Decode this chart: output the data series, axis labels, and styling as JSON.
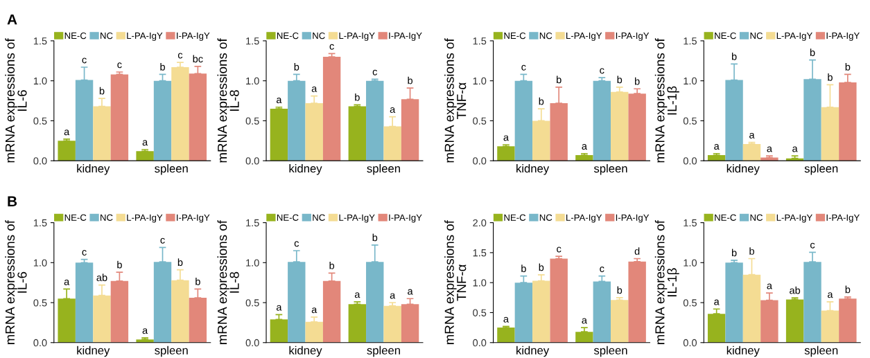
{
  "chart_data": [
    {
      "type": "bar",
      "ylabel": "mRNA expressions of\nIL-6",
      "annotations": [
        "A"
      ],
      "categories": [
        "kidney",
        "spleen"
      ],
      "legend": "top",
      "ylim": [
        0,
        1.5
      ],
      "yticks": [
        {
          "value": 0,
          "label": "0.0"
        },
        {
          "value": 0.5,
          "label": "0.5"
        },
        {
          "value": 1.0,
          "label": "1.0"
        },
        {
          "value": 1.5,
          "label": "1.5"
        }
      ],
      "series": [
        {
          "name": "NE-C",
          "color": "#97b31e",
          "values": [
            0.25,
            0.12
          ],
          "errors": [
            0.02,
            0.02
          ],
          "value_labels": [
            "a",
            "a"
          ]
        },
        {
          "name": "NC",
          "color": "#78b7c9",
          "values": [
            1.01,
            1.0
          ],
          "errors": [
            0.16,
            0.08
          ],
          "value_labels": [
            "c",
            "b"
          ]
        },
        {
          "name": "L-PA-IgY",
          "color": "#f4dc93",
          "values": [
            0.68,
            1.17
          ],
          "errors": [
            0.1,
            0.06
          ],
          "value_labels": [
            "b",
            "c"
          ]
        },
        {
          "name": "I-PA-IgY",
          "color": "#e2877a",
          "values": [
            1.08,
            1.09
          ],
          "errors": [
            0.03,
            0.09
          ],
          "value_labels": [
            "c",
            "bc"
          ]
        }
      ]
    },
    {
      "type": "bar",
      "ylabel": "mRNA expressions of\nIL-8",
      "categories": [
        "kidney",
        "spleen"
      ],
      "legend": "top",
      "ylim": [
        0,
        1.5
      ],
      "yticks": [
        {
          "value": 0,
          "label": "0.0"
        },
        {
          "value": 0.5,
          "label": "0.5"
        },
        {
          "value": 1.0,
          "label": "1.0"
        },
        {
          "value": 1.5,
          "label": "1.5"
        }
      ],
      "series": [
        {
          "name": "NE-C",
          "color": "#97b31e",
          "values": [
            0.65,
            0.68
          ],
          "errors": [
            0.02,
            0.02
          ],
          "value_labels": [
            "a",
            "b"
          ]
        },
        {
          "name": "NC",
          "color": "#78b7c9",
          "values": [
            1.0,
            1.0
          ],
          "errors": [
            0.08,
            0.02
          ],
          "value_labels": [
            "b",
            "c"
          ]
        },
        {
          "name": "L-PA-IgY",
          "color": "#f4dc93",
          "values": [
            0.72,
            0.43
          ],
          "errors": [
            0.09,
            0.12
          ],
          "value_labels": [
            "a",
            "a"
          ]
        },
        {
          "name": "I-PA-IgY",
          "color": "#e2877a",
          "values": [
            1.3,
            0.77
          ],
          "errors": [
            0.04,
            0.14
          ],
          "value_labels": [
            "c",
            "b"
          ]
        }
      ]
    },
    {
      "type": "bar",
      "ylabel": "mRNA expressions of\nTNF-α",
      "categories": [
        "kidney",
        "spleen"
      ],
      "legend": "top",
      "ylim": [
        0,
        1.5
      ],
      "yticks": [
        {
          "value": 0,
          "label": "0.0"
        },
        {
          "value": 0.5,
          "label": "0.5"
        },
        {
          "value": 1.0,
          "label": "1.0"
        },
        {
          "value": 1.5,
          "label": "1.5"
        }
      ],
      "series": [
        {
          "name": "NE-C",
          "color": "#97b31e",
          "values": [
            0.18,
            0.07
          ],
          "errors": [
            0.02,
            0.02
          ],
          "value_labels": [
            "a",
            "a"
          ]
        },
        {
          "name": "NC",
          "color": "#78b7c9",
          "values": [
            1.0,
            1.0
          ],
          "errors": [
            0.08,
            0.04
          ],
          "value_labels": [
            "c",
            "c"
          ]
        },
        {
          "name": "L-PA-IgY",
          "color": "#f4dc93",
          "values": [
            0.5,
            0.86
          ],
          "errors": [
            0.15,
            0.06
          ],
          "value_labels": [
            "b",
            "b"
          ]
        },
        {
          "name": "I-PA-IgY",
          "color": "#e2877a",
          "values": [
            0.72,
            0.84
          ],
          "errors": [
            0.2,
            0.06
          ],
          "value_labels": [
            "b",
            "b"
          ]
        }
      ]
    },
    {
      "type": "bar",
      "ylabel": "mRNA expressions of\nIL-1β",
      "categories": [
        "kidney",
        "spleen"
      ],
      "legend": "top",
      "ylim": [
        0,
        1.5
      ],
      "yticks": [
        {
          "value": 0,
          "label": "0.0"
        },
        {
          "value": 0.5,
          "label": "0.5"
        },
        {
          "value": 1.0,
          "label": "1.0"
        },
        {
          "value": 1.5,
          "label": "1.5"
        }
      ],
      "series": [
        {
          "name": "NE-C",
          "color": "#97b31e",
          "values": [
            0.07,
            0.03
          ],
          "errors": [
            0.02,
            0.03
          ],
          "value_labels": [
            "a",
            "a"
          ]
        },
        {
          "name": "NC",
          "color": "#78b7c9",
          "values": [
            1.01,
            1.02
          ],
          "errors": [
            0.2,
            0.24
          ],
          "value_labels": [
            "b",
            "b"
          ]
        },
        {
          "name": "L-PA-IgY",
          "color": "#f4dc93",
          "values": [
            0.21,
            0.67
          ],
          "errors": [
            0.02,
            0.28
          ],
          "value_labels": [
            "a",
            "b"
          ]
        },
        {
          "name": "I-PA-IgY",
          "color": "#e2877a",
          "values": [
            0.04,
            0.98
          ],
          "errors": [
            0.02,
            0.1
          ],
          "value_labels": [
            "a",
            "b"
          ]
        }
      ]
    },
    {
      "type": "bar",
      "ylabel": "mRNA expressions of\nIL-6",
      "annotations": [
        "B"
      ],
      "categories": [
        "kidney",
        "spleen"
      ],
      "legend": "top",
      "ylim": [
        0,
        1.5
      ],
      "yticks": [
        {
          "value": 0,
          "label": "0.0"
        },
        {
          "value": 0.5,
          "label": "0.5"
        },
        {
          "value": 1.0,
          "label": "1.0"
        },
        {
          "value": 1.5,
          "label": "1.5"
        }
      ],
      "series": [
        {
          "name": "NE-C",
          "color": "#97b31e",
          "values": [
            0.55,
            0.04
          ],
          "errors": [
            0.12,
            0.02
          ],
          "value_labels": [
            "a",
            "a"
          ]
        },
        {
          "name": "NC",
          "color": "#78b7c9",
          "values": [
            1.0,
            1.01
          ],
          "errors": [
            0.04,
            0.18
          ],
          "value_labels": [
            "c",
            "c"
          ]
        },
        {
          "name": "L-PA-IgY",
          "color": "#f4dc93",
          "values": [
            0.59,
            0.78
          ],
          "errors": [
            0.13,
            0.13
          ],
          "value_labels": [
            "ab",
            "b"
          ]
        },
        {
          "name": "I-PA-IgY",
          "color": "#e2877a",
          "values": [
            0.77,
            0.56
          ],
          "errors": [
            0.11,
            0.11
          ],
          "value_labels": [
            "b",
            "b"
          ]
        }
      ]
    },
    {
      "type": "bar",
      "ylabel": "mRNA expressions of\nIL-8",
      "categories": [
        "kidney",
        "spleen"
      ],
      "legend": "top",
      "ylim": [
        0,
        1.5
      ],
      "yticks": [
        {
          "value": 0,
          "label": "0.0"
        },
        {
          "value": 0.5,
          "label": "0.5"
        },
        {
          "value": 1.0,
          "label": "1.0"
        },
        {
          "value": 1.5,
          "label": "1.5"
        }
      ],
      "series": [
        {
          "name": "NE-C",
          "color": "#97b31e",
          "values": [
            0.29,
            0.48
          ],
          "errors": [
            0.06,
            0.03
          ],
          "value_labels": [
            "a",
            "a"
          ]
        },
        {
          "name": "NC",
          "color": "#78b7c9",
          "values": [
            1.01,
            1.01
          ],
          "errors": [
            0.14,
            0.21
          ],
          "value_labels": [
            "c",
            "b"
          ]
        },
        {
          "name": "L-PA-IgY",
          "color": "#f4dc93",
          "values": [
            0.26,
            0.46
          ],
          "errors": [
            0.06,
            0.04
          ],
          "value_labels": [
            "a",
            "a"
          ]
        },
        {
          "name": "I-PA-IgY",
          "color": "#e2877a",
          "values": [
            0.77,
            0.48
          ],
          "errors": [
            0.1,
            0.07
          ],
          "value_labels": [
            "b",
            "a"
          ]
        }
      ]
    },
    {
      "type": "bar",
      "ylabel": "mRNA expressions of\nTNF-α",
      "categories": [
        "kidney",
        "spleen"
      ],
      "legend": "top",
      "ylim": [
        0,
        2.0
      ],
      "yticks": [
        {
          "value": 0,
          "label": "0.0"
        },
        {
          "value": 0.5,
          "label": "0.5"
        },
        {
          "value": 1.0,
          "label": "1.0"
        },
        {
          "value": 1.5,
          "label": "1.5"
        },
        {
          "value": 2.0,
          "label": "2.0"
        }
      ],
      "series": [
        {
          "name": "NE-C",
          "color": "#97b31e",
          "values": [
            0.25,
            0.18
          ],
          "errors": [
            0.02,
            0.07
          ],
          "value_labels": [
            "a",
            "a"
          ]
        },
        {
          "name": "NC",
          "color": "#78b7c9",
          "values": [
            1.0,
            1.02
          ],
          "errors": [
            0.11,
            0.09
          ],
          "value_labels": [
            "b",
            "c"
          ]
        },
        {
          "name": "L-PA-IgY",
          "color": "#f4dc93",
          "values": [
            1.03,
            0.71
          ],
          "errors": [
            0.1,
            0.04
          ],
          "value_labels": [
            "b",
            "b"
          ]
        },
        {
          "name": "I-PA-IgY",
          "color": "#e2877a",
          "values": [
            1.4,
            1.35
          ],
          "errors": [
            0.04,
            0.05
          ],
          "value_labels": [
            "c",
            "d"
          ]
        }
      ]
    },
    {
      "type": "bar",
      "ylabel": "mRNA expressions of\nIL-1β",
      "categories": [
        "kidney",
        "spleen"
      ],
      "legend": "top",
      "ylim": [
        0,
        1.5
      ],
      "yticks": [
        {
          "value": 0,
          "label": "0.0"
        },
        {
          "value": 0.5,
          "label": "0.5"
        },
        {
          "value": 1.0,
          "label": "1.0"
        },
        {
          "value": 1.5,
          "label": "1.5"
        }
      ],
      "series": [
        {
          "name": "NE-C",
          "color": "#97b31e",
          "values": [
            0.36,
            0.54
          ],
          "errors": [
            0.06,
            0.02
          ],
          "value_labels": [
            "a",
            "ab"
          ]
        },
        {
          "name": "NC",
          "color": "#78b7c9",
          "values": [
            1.0,
            1.01
          ],
          "errors": [
            0.03,
            0.12
          ],
          "value_labels": [
            "b",
            "c"
          ]
        },
        {
          "name": "L-PA-IgY",
          "color": "#f4dc93",
          "values": [
            0.85,
            0.4
          ],
          "errors": [
            0.2,
            0.11
          ],
          "value_labels": [
            "b",
            "a"
          ]
        },
        {
          "name": "I-PA-IgY",
          "color": "#e2877a",
          "values": [
            0.53,
            0.55
          ],
          "errors": [
            0.09,
            0.02
          ],
          "value_labels": [
            "a",
            "b"
          ]
        }
      ]
    }
  ]
}
